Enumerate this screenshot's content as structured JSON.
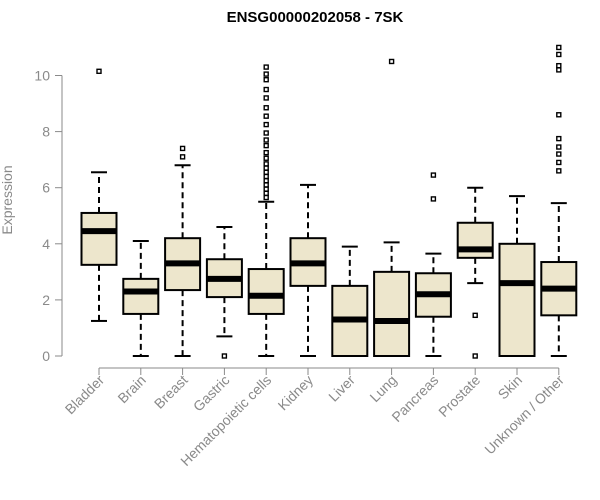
{
  "chart_data": {
    "type": "boxplot",
    "title": "ENSG00000202058 - 7SK",
    "xlabel": "",
    "ylabel": "Expression",
    "ylim": [
      0,
      11.5
    ],
    "yticks": [
      0,
      2,
      4,
      6,
      8,
      10
    ],
    "grid": false,
    "legend": "none",
    "colors": {
      "box_fill": "#ede6cc",
      "box_stroke": "#000000",
      "median": "#000000",
      "axis": "#8a8a8a"
    },
    "categories": [
      "Bladder",
      "Brain",
      "Breast",
      "Gastric",
      "Hematopoietic cells",
      "Kidney",
      "Liver",
      "Lung",
      "Pancreas",
      "Prostate",
      "Skin",
      "Unknown / Other"
    ],
    "boxes": [
      {
        "min": 1.25,
        "q1": 3.25,
        "median": 4.45,
        "q3": 5.1,
        "max": 6.55,
        "outliers": [
          10.15
        ]
      },
      {
        "min": 0.0,
        "q1": 1.5,
        "median": 2.3,
        "q3": 2.75,
        "max": 4.1,
        "outliers": []
      },
      {
        "min": 0.0,
        "q1": 2.35,
        "median": 3.3,
        "q3": 4.2,
        "max": 6.8,
        "outliers": [
          7.1,
          7.4
        ]
      },
      {
        "min": 0.7,
        "q1": 2.1,
        "median": 2.75,
        "q3": 3.45,
        "max": 4.6,
        "outliers": [
          0.0
        ]
      },
      {
        "min": 0.0,
        "q1": 1.5,
        "median": 2.15,
        "q3": 3.1,
        "max": 5.5,
        "outliers": [
          5.65,
          5.8,
          5.95,
          6.1,
          6.25,
          6.4,
          6.55,
          6.7,
          6.85,
          7.05,
          7.25,
          7.5,
          7.7,
          7.95,
          8.25,
          8.55,
          8.85,
          9.2,
          9.5,
          9.85,
          10.05,
          10.3
        ]
      },
      {
        "min": 0.0,
        "q1": 2.5,
        "median": 3.3,
        "q3": 4.2,
        "max": 6.1,
        "outliers": []
      },
      {
        "min": 0.0,
        "q1": 0.0,
        "median": 1.3,
        "q3": 2.5,
        "max": 3.9,
        "outliers": []
      },
      {
        "min": 0.0,
        "q1": 0.0,
        "median": 1.25,
        "q3": 3.0,
        "max": 4.05,
        "outliers": [
          10.5
        ]
      },
      {
        "min": 0.0,
        "q1": 1.4,
        "median": 2.2,
        "q3": 2.95,
        "max": 3.65,
        "outliers": [
          5.6,
          6.45
        ]
      },
      {
        "min": 2.6,
        "q1": 3.5,
        "median": 3.8,
        "q3": 4.75,
        "max": 6.0,
        "outliers": [
          0.0,
          1.45
        ]
      },
      {
        "min": 0.0,
        "q1": 0.0,
        "median": 2.6,
        "q3": 4.0,
        "max": 5.7,
        "outliers": []
      },
      {
        "min": 0.0,
        "q1": 1.45,
        "median": 2.4,
        "q3": 3.35,
        "max": 5.45,
        "outliers": [
          6.6,
          6.9,
          7.2,
          7.45,
          7.75,
          8.6,
          10.2,
          10.35,
          10.75,
          11.0
        ]
      }
    ]
  }
}
